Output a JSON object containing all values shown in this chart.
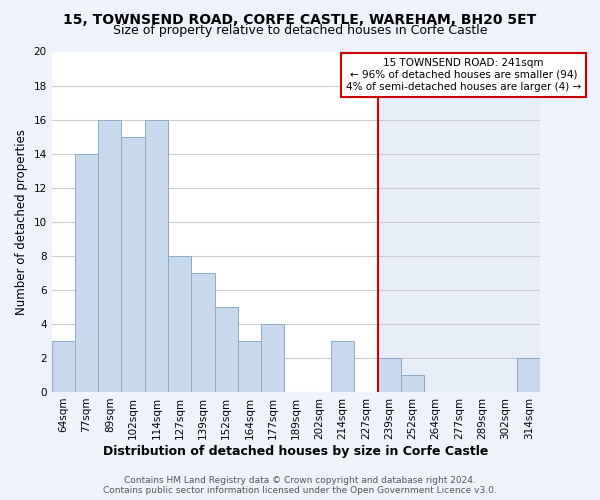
{
  "title1": "15, TOWNSEND ROAD, CORFE CASTLE, WAREHAM, BH20 5ET",
  "title2": "Size of property relative to detached houses in Corfe Castle",
  "xlabel": "Distribution of detached houses by size in Corfe Castle",
  "ylabel": "Number of detached properties",
  "bin_labels": [
    "64sqm",
    "77sqm",
    "89sqm",
    "102sqm",
    "114sqm",
    "127sqm",
    "139sqm",
    "152sqm",
    "164sqm",
    "177sqm",
    "189sqm",
    "202sqm",
    "214sqm",
    "227sqm",
    "239sqm",
    "252sqm",
    "264sqm",
    "277sqm",
    "289sqm",
    "302sqm",
    "314sqm"
  ],
  "bar_heights": [
    3,
    14,
    16,
    15,
    16,
    8,
    7,
    5,
    3,
    4,
    0,
    0,
    3,
    0,
    2,
    1,
    0,
    0,
    0,
    0,
    2
  ],
  "bar_color": "#c8d8ed",
  "bar_edge_color": "#8aaac8",
  "highlight_color": "#dce8f5",
  "ylim": [
    0,
    20
  ],
  "yticks": [
    0,
    2,
    4,
    6,
    8,
    10,
    12,
    14,
    16,
    18,
    20
  ],
  "annotation_title": "15 TOWNSEND ROAD: 241sqm",
  "annotation_line1": "← 96% of detached houses are smaller (94)",
  "annotation_line2": "4% of semi-detached houses are larger (4) →",
  "annotation_box_color": "#ffffff",
  "annotation_box_edge": "#cc0000",
  "property_vline_color": "#cc0000",
  "footer1": "Contains HM Land Registry data © Crown copyright and database right 2024.",
  "footer2": "Contains public sector information licensed under the Open Government Licence v3.0.",
  "background_color": "#eef2fa",
  "plot_bg_left": "#ffffff",
  "plot_bg_right": "#e8eef8",
  "grid_color": "#cccccc",
  "title1_fontsize": 10,
  "title2_fontsize": 9,
  "xlabel_fontsize": 9,
  "ylabel_fontsize": 8.5,
  "tick_fontsize": 7.5,
  "footer_fontsize": 6.5
}
